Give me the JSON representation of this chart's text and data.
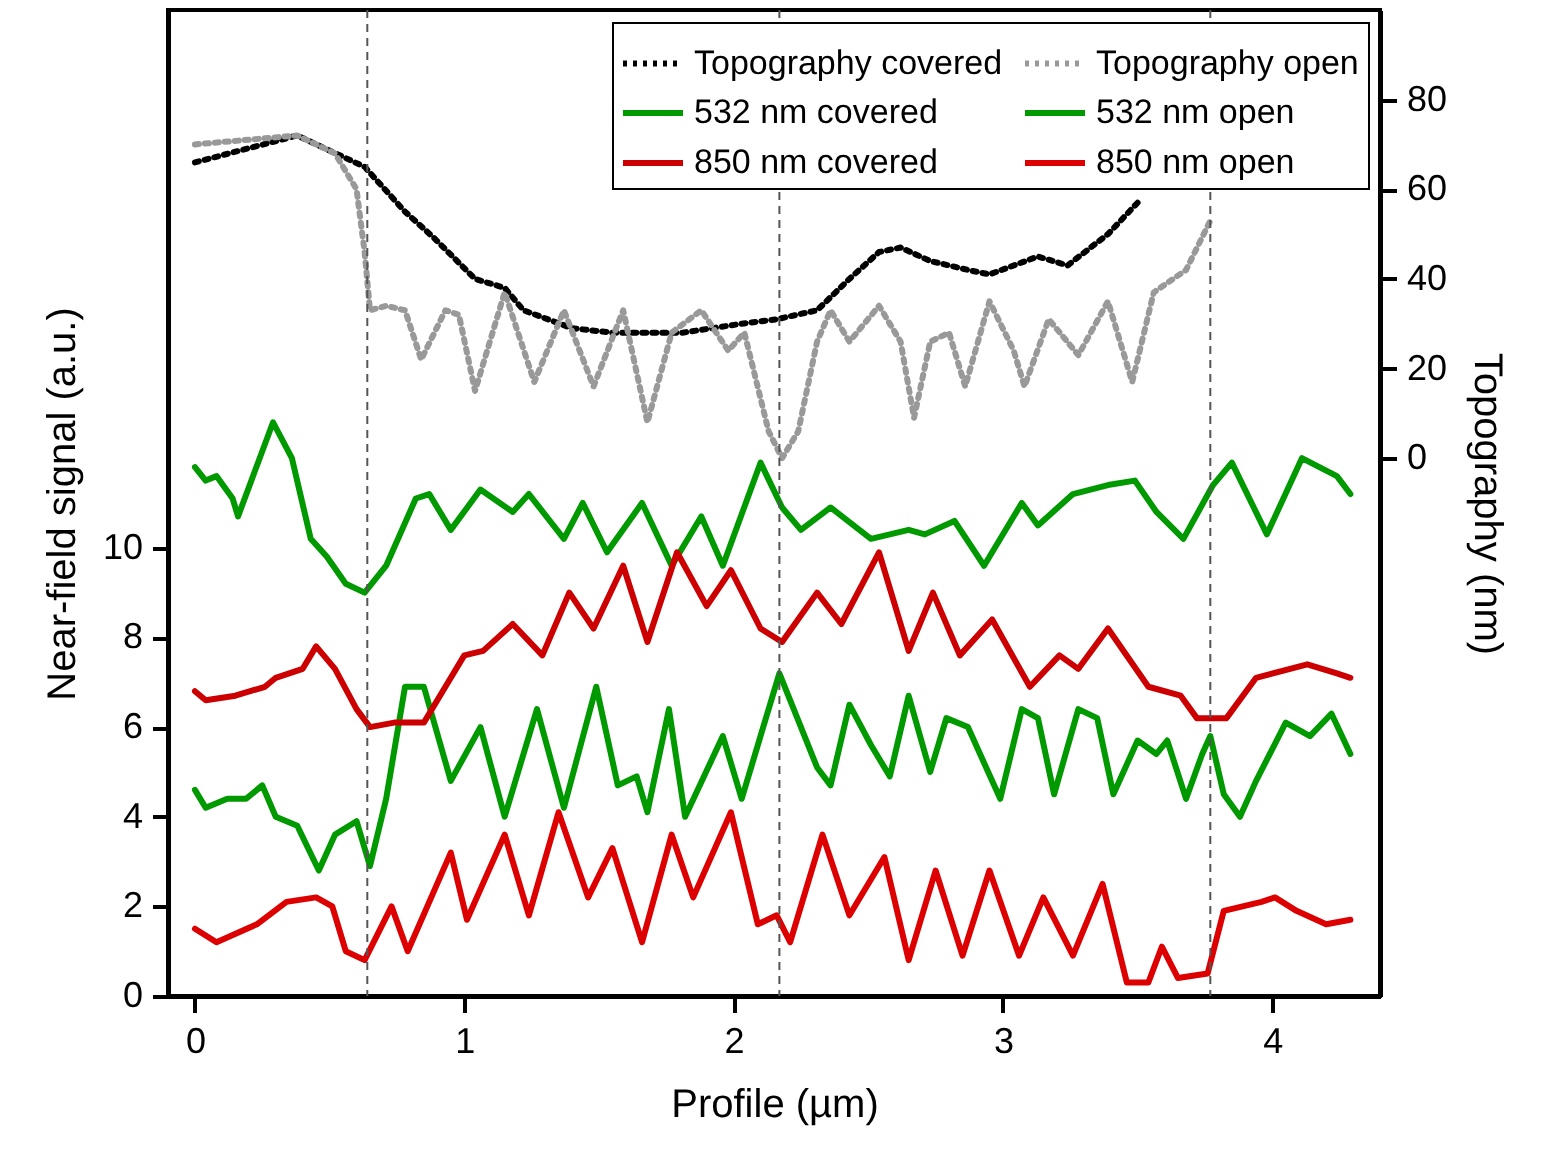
{
  "chart_data": {
    "type": "line",
    "xlabel": "Profile (µm)",
    "ylabel": "Near-field signal (a.u.)",
    "y2label": "Topography (nm)",
    "xlim": [
      -0.1,
      4.4
    ],
    "xticks": [
      0,
      1,
      2,
      3,
      4
    ],
    "ylim": [
      0,
      22
    ],
    "yticks": [
      0,
      2,
      4,
      6,
      8,
      10
    ],
    "y2lim": [
      -120,
      100
    ],
    "y2ticks": [
      0,
      20,
      40,
      60,
      80
    ],
    "grid": false,
    "legend": "top right",
    "ref_lines": [
      {
        "axis": "x",
        "value": 0.64,
        "color": "#555555",
        "line_style": "dashed"
      },
      {
        "axis": "x",
        "value": 2.17,
        "color": "#555555",
        "line_style": "dashed"
      },
      {
        "axis": "x",
        "value": 3.77,
        "color": "#555555",
        "line_style": "dashed"
      }
    ],
    "series": [
      {
        "name": "Topography covered",
        "color": "#000000",
        "axis": "y2",
        "line_style": "dotted",
        "x": [
          0,
          0.38,
          0.63,
          0.78,
          0.89,
          1.04,
          1.15,
          1.22,
          1.4,
          1.55,
          1.81,
          2.03,
          2.16,
          2.31,
          2.43,
          2.54,
          2.62,
          2.73,
          2.87,
          2.95,
          3.13,
          3.24,
          3.39,
          3.5
        ],
        "values": [
          66,
          72,
          65,
          55,
          49,
          40,
          38,
          33,
          29,
          28,
          28,
          30,
          31,
          33,
          40,
          46,
          47,
          44,
          42,
          41,
          45,
          43,
          50,
          57
        ]
      },
      {
        "name": "Topography open",
        "color": "#999999",
        "axis": "y2",
        "line_style": "dotted",
        "x": [
          0,
          0.38,
          0.52,
          0.6,
          0.63,
          0.65,
          0.71,
          0.78,
          0.84,
          0.93,
          0.98,
          1.04,
          1.15,
          1.26,
          1.37,
          1.48,
          1.59,
          1.68,
          1.77,
          1.88,
          1.98,
          2.04,
          2.13,
          2.18,
          2.24,
          2.31,
          2.36,
          2.43,
          2.54,
          2.62,
          2.67,
          2.73,
          2.8,
          2.86,
          2.95,
          3.04,
          3.08,
          3.17,
          3.28,
          3.39,
          3.48,
          3.56,
          3.68,
          3.77
        ],
        "values": [
          70,
          72,
          68,
          60,
          46,
          33,
          34,
          33,
          22,
          33,
          32,
          15,
          37,
          17,
          33,
          16,
          33,
          8,
          28,
          33,
          24,
          28,
          6,
          0,
          6,
          26,
          33,
          26,
          34,
          26,
          9,
          26,
          28,
          16,
          35,
          24,
          16,
          31,
          23,
          35,
          17,
          37,
          42,
          53
        ]
      },
      {
        "name": "532 nm covered",
        "color": "#009900",
        "line_style": "solid",
        "x": [
          0,
          0.04,
          0.08,
          0.14,
          0.16,
          0.29,
          0.36,
          0.43,
          0.49,
          0.56,
          0.63,
          0.71,
          0.82,
          0.87,
          0.95,
          1.06,
          1.18,
          1.24,
          1.37,
          1.44,
          1.53,
          1.66,
          1.77,
          1.88,
          1.96,
          2.1,
          2.18,
          2.25,
          2.36,
          2.51,
          2.65,
          2.71,
          2.82,
          2.93,
          3.07,
          3.13,
          3.26,
          3.39,
          3.49,
          3.57,
          3.67,
          3.78,
          3.85,
          3.98,
          4.11,
          4.24,
          4.29
        ],
        "values": [
          11.8,
          11.5,
          11.6,
          11.1,
          10.7,
          12.8,
          12.0,
          10.2,
          9.8,
          9.2,
          9.0,
          9.6,
          11.1,
          11.2,
          10.4,
          11.3,
          10.8,
          11.2,
          10.2,
          11.0,
          9.9,
          11.0,
          9.6,
          10.7,
          9.6,
          11.9,
          10.9,
          10.4,
          10.9,
          10.2,
          10.4,
          10.3,
          10.6,
          9.6,
          11.0,
          10.5,
          11.2,
          11.4,
          11.5,
          10.8,
          10.2,
          11.4,
          11.9,
          10.3,
          12.0,
          11.6,
          11.2
        ]
      },
      {
        "name": "532 nm open",
        "color": "#009900",
        "line_style": "solid",
        "x": [
          0,
          0.04,
          0.12,
          0.19,
          0.25,
          0.3,
          0.38,
          0.46,
          0.52,
          0.6,
          0.65,
          0.71,
          0.78,
          0.85,
          0.95,
          1.06,
          1.15,
          1.27,
          1.37,
          1.49,
          1.57,
          1.64,
          1.68,
          1.76,
          1.82,
          1.96,
          2.03,
          2.17,
          2.31,
          2.36,
          2.43,
          2.51,
          2.58,
          2.65,
          2.73,
          2.79,
          2.87,
          2.99,
          3.07,
          3.13,
          3.19,
          3.28,
          3.35,
          3.41,
          3.5,
          3.57,
          3.61,
          3.68,
          3.74,
          3.77,
          3.82,
          3.88,
          3.94,
          4.05,
          4.14,
          4.22,
          4.29
        ],
        "values": [
          4.6,
          4.2,
          4.4,
          4.4,
          4.7,
          4.0,
          3.8,
          2.8,
          3.6,
          3.9,
          2.9,
          4.4,
          6.9,
          6.9,
          4.8,
          6.0,
          4.0,
          6.4,
          4.2,
          6.9,
          4.7,
          4.9,
          4.1,
          6.4,
          4.0,
          5.8,
          4.4,
          7.2,
          5.1,
          4.7,
          6.5,
          5.6,
          4.9,
          6.7,
          5.0,
          6.2,
          6.0,
          4.4,
          6.4,
          6.2,
          4.5,
          6.4,
          6.2,
          4.5,
          5.7,
          5.4,
          5.7,
          4.4,
          5.4,
          5.8,
          4.5,
          4.0,
          4.8,
          6.1,
          5.8,
          6.3,
          5.4
        ]
      },
      {
        "name": "850 nm covered",
        "color": "#cc0000",
        "line_style": "solid",
        "x": [
          0,
          0.04,
          0.15,
          0.26,
          0.3,
          0.4,
          0.45,
          0.52,
          0.6,
          0.65,
          0.74,
          0.85,
          0.93,
          1.0,
          1.07,
          1.18,
          1.29,
          1.39,
          1.48,
          1.59,
          1.68,
          1.79,
          1.9,
          1.99,
          2.1,
          2.18,
          2.31,
          2.4,
          2.54,
          2.65,
          2.74,
          2.84,
          2.96,
          3.1,
          3.21,
          3.28,
          3.39,
          3.54,
          3.66,
          3.72,
          3.83,
          3.94,
          4.13,
          4.24,
          4.29
        ],
        "values": [
          6.8,
          6.6,
          6.7,
          6.9,
          7.1,
          7.3,
          7.8,
          7.3,
          6.4,
          6.0,
          6.1,
          6.1,
          6.9,
          7.6,
          7.7,
          8.3,
          7.6,
          9.0,
          8.2,
          9.6,
          7.9,
          9.9,
          8.7,
          9.5,
          8.2,
          7.9,
          9.0,
          8.3,
          9.9,
          7.7,
          9.0,
          7.6,
          8.4,
          6.9,
          7.6,
          7.3,
          8.2,
          6.9,
          6.7,
          6.2,
          6.2,
          7.1,
          7.4,
          7.2,
          7.1
        ]
      },
      {
        "name": "850 nm open",
        "color": "#dd0000",
        "line_style": "solid",
        "x": [
          0,
          0.08,
          0.23,
          0.34,
          0.45,
          0.51,
          0.56,
          0.63,
          0.73,
          0.79,
          0.95,
          1.01,
          1.15,
          1.24,
          1.35,
          1.46,
          1.55,
          1.66,
          1.77,
          1.85,
          1.99,
          2.09,
          2.16,
          2.21,
          2.33,
          2.43,
          2.56,
          2.65,
          2.75,
          2.85,
          2.95,
          3.06,
          3.15,
          3.26,
          3.37,
          3.46,
          3.54,
          3.59,
          3.65,
          3.76,
          3.82,
          3.96,
          4.01,
          4.09,
          4.2,
          4.29
        ],
        "values": [
          1.5,
          1.2,
          1.6,
          2.1,
          2.2,
          2.0,
          1.0,
          0.8,
          2.0,
          1.0,
          3.2,
          1.7,
          3.6,
          1.8,
          4.1,
          2.2,
          3.3,
          1.2,
          3.6,
          2.2,
          4.1,
          1.6,
          1.8,
          1.2,
          3.6,
          1.8,
          3.1,
          0.8,
          2.8,
          0.9,
          2.8,
          0.9,
          2.2,
          0.9,
          2.5,
          0.3,
          0.3,
          1.1,
          0.4,
          0.5,
          1.9,
          2.1,
          2.2,
          1.9,
          1.6,
          1.7
        ]
      }
    ]
  }
}
